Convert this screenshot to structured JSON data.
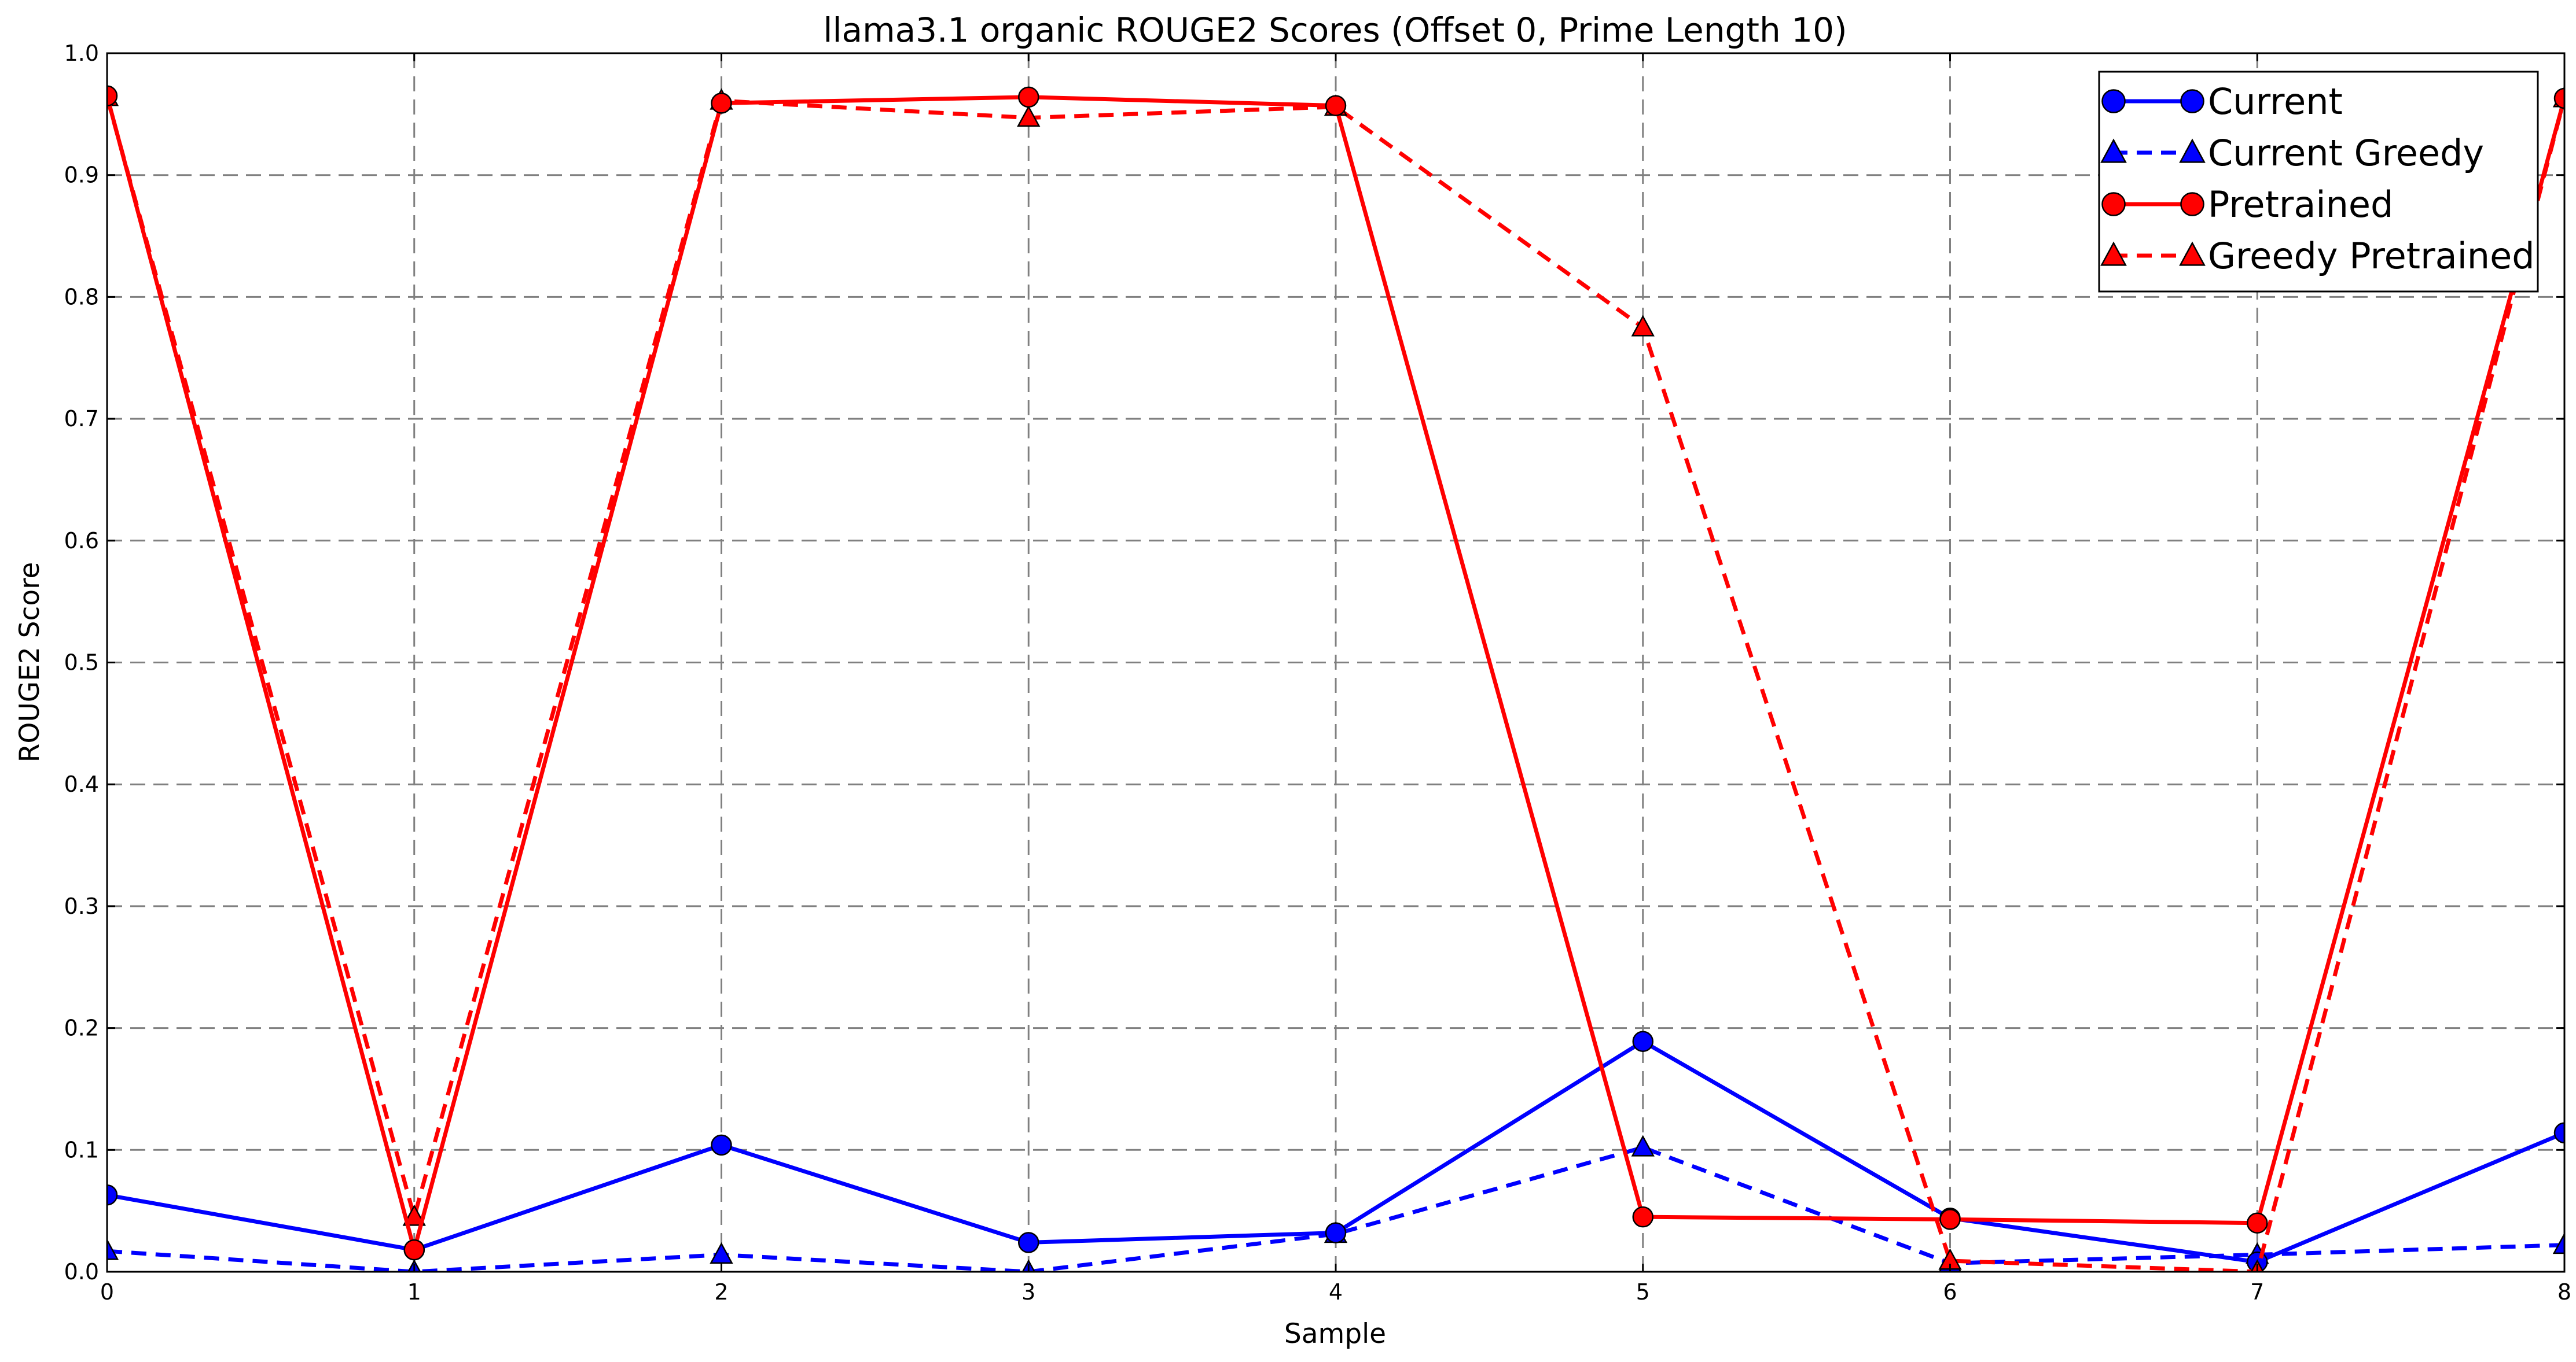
{
  "chart_data": {
    "type": "line",
    "title": "llama3.1 organic ROUGE2 Scores (Offset 0, Prime Length 10)",
    "xlabel": "Sample",
    "ylabel": "ROUGE2 Score",
    "xlim": [
      0,
      8
    ],
    "ylim": [
      0.0,
      1.0
    ],
    "x": [
      0,
      1,
      2,
      3,
      4,
      5,
      6,
      7,
      8
    ],
    "x_ticks": [
      "0",
      "1",
      "2",
      "3",
      "4",
      "5",
      "6",
      "7",
      "8"
    ],
    "y_ticks": [
      "0.0",
      "0.1",
      "0.2",
      "0.3",
      "0.4",
      "0.5",
      "0.6",
      "0.7",
      "0.8",
      "0.9",
      "1.0"
    ],
    "grid": true,
    "legend_position": "top-right",
    "series": [
      {
        "name": "Current",
        "color": "#0000ff",
        "linestyle": "solid",
        "marker": "circle",
        "values": [
          0.063,
          0.018,
          0.104,
          0.024,
          0.032,
          0.189,
          0.044,
          0.008,
          0.114
        ]
      },
      {
        "name": "Current Greedy",
        "color": "#0000ff",
        "linestyle": "dashed",
        "marker": "triangle",
        "values": [
          0.017,
          0.0,
          0.014,
          0.0,
          0.031,
          0.102,
          0.007,
          0.014,
          0.022
        ]
      },
      {
        "name": "Pretrained",
        "color": "#ff0000",
        "linestyle": "solid",
        "marker": "circle",
        "values": [
          0.965,
          0.018,
          0.959,
          0.964,
          0.957,
          0.045,
          0.043,
          0.04,
          0.963
        ]
      },
      {
        "name": "Greedy Pretrained",
        "color": "#ff0000",
        "linestyle": "dashed",
        "marker": "triangle",
        "values": [
          0.964,
          0.045,
          0.961,
          0.947,
          0.956,
          0.775,
          0.009,
          0.0,
          0.963
        ]
      }
    ]
  }
}
